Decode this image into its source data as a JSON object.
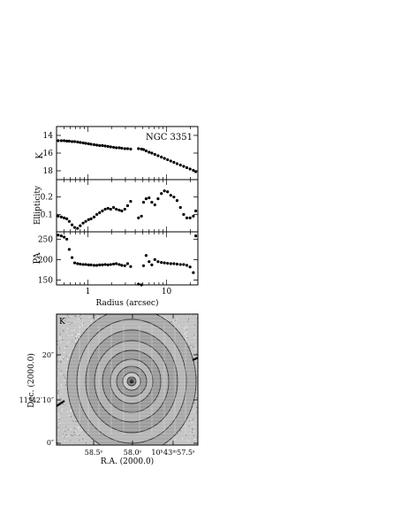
{
  "figure": {
    "object_name": "NGC 3351",
    "band_label": "K"
  },
  "chart_data": [
    {
      "type": "scatter",
      "panel": "surface-brightness",
      "ylabel": "K",
      "xscale": "log",
      "xlim": [
        0.4,
        25
      ],
      "ylim": [
        19,
        13
      ],
      "yticks": [
        14,
        16,
        18
      ],
      "x": [
        0.42,
        0.46,
        0.5,
        0.54,
        0.58,
        0.63,
        0.68,
        0.74,
        0.8,
        0.87,
        0.94,
        1.02,
        1.1,
        1.2,
        1.3,
        1.41,
        1.53,
        1.66,
        1.8,
        1.95,
        2.12,
        2.3,
        2.5,
        2.7,
        2.95,
        3.2,
        3.5,
        4.4,
        4.8,
        5.1,
        5.5,
        6.0,
        6.5,
        7.1,
        7.8,
        8.6,
        9.4,
        10.3,
        11.3,
        12.4,
        13.6,
        15.0,
        16.5,
        18.1,
        19.9,
        21.9,
        23.5
      ],
      "y": [
        14.6,
        14.6,
        14.6,
        14.65,
        14.65,
        14.7,
        14.7,
        14.75,
        14.8,
        14.85,
        14.9,
        14.95,
        15.0,
        15.05,
        15.1,
        15.15,
        15.15,
        15.2,
        15.25,
        15.3,
        15.35,
        15.4,
        15.4,
        15.45,
        15.5,
        15.5,
        15.55,
        15.5,
        15.55,
        15.6,
        15.75,
        15.9,
        16.0,
        16.15,
        16.3,
        16.45,
        16.6,
        16.75,
        16.9,
        17.05,
        17.2,
        17.35,
        17.5,
        17.65,
        17.8,
        17.95,
        18.1
      ]
    },
    {
      "type": "scatter",
      "panel": "ellipticity",
      "ylabel": "Ellipticity",
      "xscale": "log",
      "xlim": [
        0.4,
        25
      ],
      "ylim": [
        0,
        0.3
      ],
      "yticks": [
        0.1,
        0.2
      ],
      "x": [
        0.42,
        0.46,
        0.5,
        0.54,
        0.58,
        0.63,
        0.68,
        0.74,
        0.8,
        0.87,
        0.94,
        1.02,
        1.1,
        1.2,
        1.3,
        1.41,
        1.53,
        1.66,
        1.8,
        1.95,
        2.12,
        2.3,
        2.5,
        2.7,
        2.95,
        3.2,
        3.5,
        4.4,
        4.8,
        5.1,
        5.5,
        6.0,
        6.5,
        7.1,
        7.8,
        8.6,
        9.4,
        10.3,
        11.3,
        12.4,
        13.6,
        15.0,
        16.5,
        18.1,
        19.9,
        21.9,
        23.5
      ],
      "y": [
        0.09,
        0.085,
        0.08,
        0.075,
        0.06,
        0.04,
        0.025,
        0.02,
        0.035,
        0.05,
        0.06,
        0.07,
        0.075,
        0.085,
        0.1,
        0.11,
        0.12,
        0.13,
        0.135,
        0.13,
        0.14,
        0.13,
        0.125,
        0.12,
        0.13,
        0.15,
        0.175,
        0.08,
        0.09,
        0.17,
        0.19,
        0.195,
        0.17,
        0.155,
        0.19,
        0.22,
        0.235,
        0.23,
        0.21,
        0.2,
        0.18,
        0.14,
        0.1,
        0.08,
        0.08,
        0.09,
        0.12
      ]
    },
    {
      "type": "scatter",
      "panel": "position-angle",
      "ylabel": "PA",
      "xlabel": "Radius (arcsec)",
      "xscale": "log",
      "xlim": [
        0.4,
        25
      ],
      "ylim": [
        138,
        268
      ],
      "yticks": [
        150,
        200,
        250
      ],
      "xticks": [
        1,
        10
      ],
      "x": [
        0.42,
        0.46,
        0.5,
        0.54,
        0.58,
        0.63,
        0.68,
        0.74,
        0.8,
        0.87,
        0.94,
        1.02,
        1.1,
        1.2,
        1.3,
        1.41,
        1.53,
        1.66,
        1.8,
        1.95,
        2.12,
        2.3,
        2.5,
        2.7,
        2.95,
        3.2,
        3.5,
        4.4,
        4.8,
        5.1,
        5.5,
        6.0,
        6.5,
        7.1,
        7.8,
        8.6,
        9.4,
        10.3,
        11.3,
        12.4,
        13.6,
        15.0,
        16.5,
        18.1,
        19.9,
        21.9,
        23.5
      ],
      "y": [
        260,
        258,
        255,
        250,
        225,
        205,
        192,
        190,
        189,
        188,
        188,
        187,
        187,
        186,
        186,
        187,
        187,
        188,
        187,
        188,
        189,
        190,
        188,
        186,
        185,
        190,
        183,
        140,
        138,
        185,
        210,
        195,
        187,
        200,
        195,
        193,
        192,
        191,
        190,
        190,
        189,
        188,
        188,
        186,
        182,
        168,
        258
      ]
    },
    {
      "type": "image",
      "panel": "isophote-map",
      "xlabel": "R.A. (2000.0)",
      "ylabel": "Dec. (2000.0)",
      "corner_label": "K",
      "xtick_labels": [
        "58.5ˢ",
        "58.0ˢ",
        "10ʰ43ᵐ57.5ˢ"
      ],
      "ytick_labels": [
        "0″",
        "11°42′10″",
        "20″"
      ]
    }
  ]
}
